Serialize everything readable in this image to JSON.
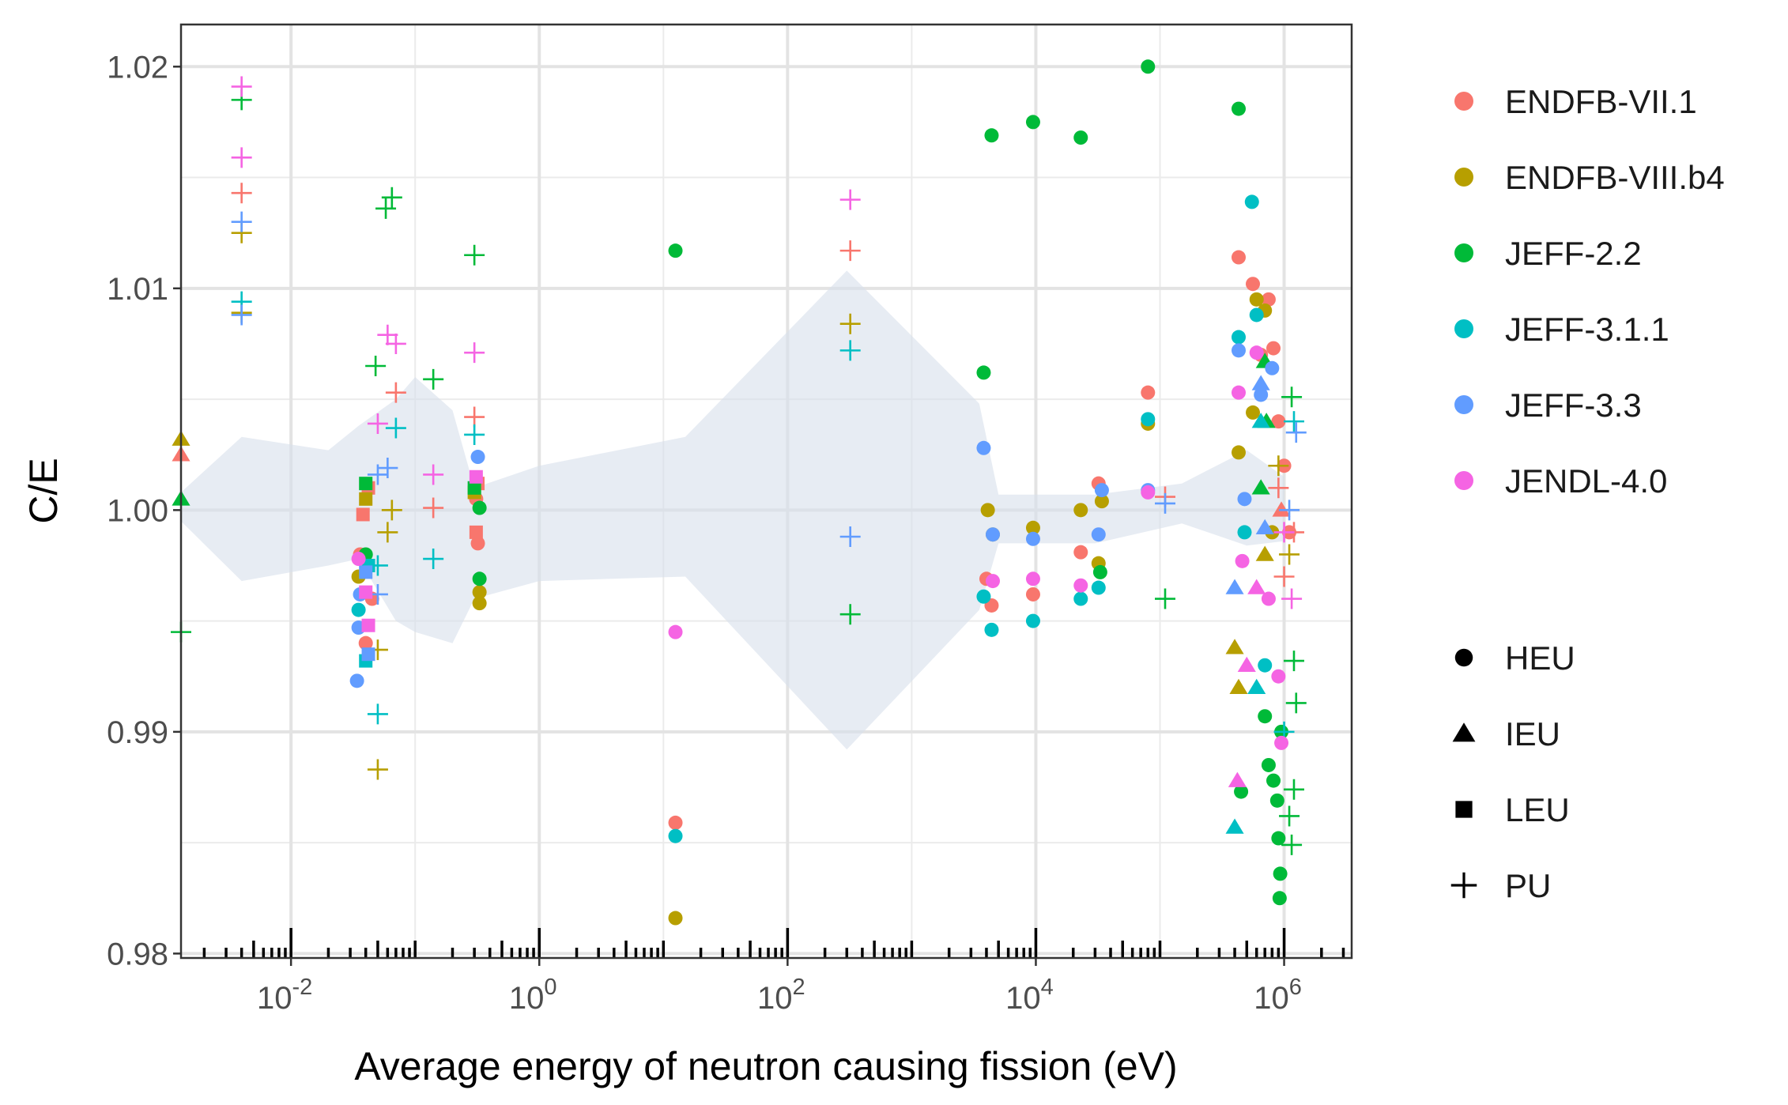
{
  "chart_data": {
    "type": "scatter",
    "xlabel": "Average energy of neutron causing fission (eV)",
    "ylabel": "C/E",
    "x_scale": "log10",
    "xlim": [
      0.0013,
      3500000
    ],
    "ylim": [
      0.9798,
      1.0219
    ],
    "x_ticks": [
      {
        "value": 0.01,
        "base": "10",
        "exp": "-2"
      },
      {
        "value": 1,
        "base": "10",
        "exp": "0"
      },
      {
        "value": 100,
        "base": "10",
        "exp": "2"
      },
      {
        "value": 10000,
        "base": "10",
        "exp": "4"
      },
      {
        "value": 1000000,
        "base": "10",
        "exp": "6"
      }
    ],
    "y_ticks": [
      {
        "value": 0.98,
        "label": "0.98"
      },
      {
        "value": 0.99,
        "label": "0.99"
      },
      {
        "value": 1.0,
        "label": "1.00"
      },
      {
        "value": 1.01,
        "label": "1.01"
      },
      {
        "value": 1.02,
        "label": "1.02"
      }
    ],
    "y_minor": [
      0.985,
      0.995,
      1.005,
      1.015
    ],
    "grid": true,
    "legend_position": "right",
    "libraries": [
      {
        "name": "ENDFB-VII.1",
        "color": "#F8766D"
      },
      {
        "name": "ENDFB-VIII.b4",
        "color": "#B79F00"
      },
      {
        "name": "JEFF-2.2",
        "color": "#00BA38"
      },
      {
        "name": "JEFF-3.1.1",
        "color": "#00BFC4"
      },
      {
        "name": "JEFF-3.3",
        "color": "#619CFF"
      },
      {
        "name": "JENDL-4.0",
        "color": "#F564E3"
      }
    ],
    "fuel_types": [
      {
        "name": "HEU",
        "shape": "circle"
      },
      {
        "name": "IEU",
        "shape": "triangle"
      },
      {
        "name": "LEU",
        "shape": "square"
      },
      {
        "name": "PU",
        "shape": "plus"
      }
    ],
    "uncertainty_band": [
      [
        0.0013,
        0.9995,
        1.0008
      ],
      [
        0.004,
        0.9968,
        1.0033
      ],
      [
        0.02,
        0.9975,
        1.0027
      ],
      [
        0.035,
        0.9978,
        1.0038
      ],
      [
        0.07,
        0.995,
        1.005
      ],
      [
        0.1,
        0.9945,
        1.006
      ],
      [
        0.2,
        0.994,
        1.0045
      ],
      [
        0.3,
        0.996,
        1.001
      ],
      [
        1,
        0.9968,
        1.002
      ],
      [
        15,
        0.997,
        1.0033
      ],
      [
        300,
        0.9892,
        1.0108
      ],
      [
        3500,
        0.9955,
        1.0048
      ],
      [
        5000,
        0.9985,
        1.0007
      ],
      [
        30000,
        0.9985,
        1.0007
      ],
      [
        150000,
        0.9994,
        1.0012
      ],
      [
        500000,
        0.9984,
        1.0027
      ],
      [
        1000000,
        0.9986,
        1.0015
      ]
    ],
    "series": [
      {
        "name": "ENDFB-VII.1",
        "fuel": "HEU",
        "points": [
          [
            12.5,
            0.9859
          ],
          [
            4000,
            0.9969
          ],
          [
            4400,
            0.9957
          ],
          [
            9500,
            0.9962
          ],
          [
            23000,
            0.9981
          ],
          [
            32000,
            1.0012
          ],
          [
            80000,
            1.0053
          ],
          [
            430000,
            1.0114
          ],
          [
            560000,
            1.0102
          ],
          [
            650000,
            1.007
          ],
          [
            750000,
            1.0095
          ],
          [
            820000,
            1.0073
          ],
          [
            900000,
            1.004
          ],
          [
            1000000,
            1.002
          ],
          [
            1100000,
            0.999
          ],
          [
            0.036,
            0.998
          ],
          [
            0.04,
            0.994
          ],
          [
            0.045,
            0.996
          ],
          [
            0.31,
            1.0005
          ],
          [
            0.32,
            0.9985
          ]
        ]
      },
      {
        "name": "ENDFB-VII.1",
        "fuel": "PU",
        "points": [
          [
            0.004,
            1.0143
          ],
          [
            0.07,
            1.0053
          ],
          [
            0.14,
            1.0001
          ],
          [
            0.3,
            1.0042
          ],
          [
            320,
            1.0117
          ],
          [
            110000,
            1.0006
          ],
          [
            900000,
            1.001
          ],
          [
            1000000,
            0.997
          ],
          [
            1200000,
            0.999
          ]
        ]
      },
      {
        "name": "ENDFB-VII.1",
        "fuel": "LEU",
        "points": [
          [
            0.038,
            0.9998
          ],
          [
            0.042,
            1.001
          ],
          [
            0.31,
            0.999
          ],
          [
            0.32,
            1.0012
          ]
        ]
      },
      {
        "name": "ENDFB-VII.1",
        "fuel": "IEU",
        "points": [
          [
            0.0013,
            1.0025
          ],
          [
            950000,
            1.0
          ]
        ]
      },
      {
        "name": "ENDFB-VIII.b4",
        "fuel": "HEU",
        "points": [
          [
            12.5,
            0.9816
          ],
          [
            4100,
            1.0
          ],
          [
            4500,
            0.9989
          ],
          [
            9500,
            0.9992
          ],
          [
            23000,
            1.0
          ],
          [
            32000,
            0.9976
          ],
          [
            34000,
            1.0004
          ],
          [
            80000,
            1.0039
          ],
          [
            430000,
            1.0026
          ],
          [
            560000,
            1.0044
          ],
          [
            600000,
            1.0095
          ],
          [
            700000,
            1.009
          ],
          [
            800000,
            0.999
          ],
          [
            0.035,
            0.997
          ],
          [
            0.33,
            0.9958
          ],
          [
            0.33,
            0.9963
          ]
        ]
      },
      {
        "name": "ENDFB-VIII.b4",
        "fuel": "PU",
        "points": [
          [
            0.004,
            1.0125
          ],
          [
            0.004,
            1.0089
          ],
          [
            0.05,
            0.9883
          ],
          [
            0.05,
            0.9937
          ],
          [
            0.06,
            0.999
          ],
          [
            0.065,
            1.0
          ],
          [
            320,
            1.0084
          ],
          [
            900000,
            1.002
          ],
          [
            1100000,
            0.998
          ]
        ]
      },
      {
        "name": "ENDFB-VIII.b4",
        "fuel": "IEU",
        "points": [
          [
            0.0013,
            1.0032
          ],
          [
            400000,
            0.9938
          ],
          [
            430000,
            0.992
          ],
          [
            700000,
            0.998
          ]
        ]
      },
      {
        "name": "ENDFB-VIII.b4",
        "fuel": "LEU",
        "points": [
          [
            0.04,
            1.0005
          ],
          [
            0.3,
            1.0008
          ]
        ]
      },
      {
        "name": "JEFF-2.2",
        "fuel": "HEU",
        "points": [
          [
            12.5,
            1.0117
          ],
          [
            3800,
            1.0062
          ],
          [
            4400,
            1.0169
          ],
          [
            9500,
            1.0175
          ],
          [
            23000,
            1.0168
          ],
          [
            33000,
            0.9972
          ],
          [
            80000,
            1.02
          ],
          [
            430000,
            1.0181
          ],
          [
            450000,
            0.9873
          ],
          [
            700000,
            0.9907
          ],
          [
            750000,
            0.9885
          ],
          [
            820000,
            0.9878
          ],
          [
            880000,
            0.9869
          ],
          [
            900000,
            0.9852
          ],
          [
            920000,
            0.9825
          ],
          [
            930000,
            0.9836
          ],
          [
            950000,
            0.99
          ],
          [
            0.33,
            0.9969
          ],
          [
            0.33,
            1.0001
          ],
          [
            0.04,
            0.998
          ]
        ]
      },
      {
        "name": "JEFF-2.2",
        "fuel": "PU",
        "points": [
          [
            0.0013,
            0.9945
          ],
          [
            0.004,
            1.0185
          ],
          [
            0.048,
            1.0065
          ],
          [
            0.058,
            1.0136
          ],
          [
            0.065,
            1.0141
          ],
          [
            0.14,
            1.0059
          ],
          [
            0.3,
            1.0115
          ],
          [
            320,
            0.9953
          ],
          [
            110000,
            0.996
          ],
          [
            1150000,
            1.0051
          ],
          [
            1200000,
            0.9932
          ],
          [
            1250000,
            0.9913
          ],
          [
            1200000,
            0.9874
          ],
          [
            1150000,
            0.9849
          ],
          [
            1100000,
            0.9862
          ]
        ]
      },
      {
        "name": "JEFF-2.2",
        "fuel": "IEU",
        "points": [
          [
            0.0013,
            1.0005
          ],
          [
            700000,
            1.0067
          ],
          [
            650000,
            1.001
          ],
          [
            720000,
            1.004
          ]
        ]
      },
      {
        "name": "JEFF-2.2",
        "fuel": "LEU",
        "points": [
          [
            0.04,
            1.0012
          ],
          [
            0.3,
            1.001
          ]
        ]
      },
      {
        "name": "JEFF-3.1.1",
        "fuel": "HEU",
        "points": [
          [
            12.5,
            0.9853
          ],
          [
            3800,
            0.9961
          ],
          [
            4400,
            0.9946
          ],
          [
            9500,
            0.995
          ],
          [
            23000,
            0.996
          ],
          [
            32000,
            0.9965
          ],
          [
            80000,
            1.0041
          ],
          [
            430000,
            1.0078
          ],
          [
            480000,
            0.999
          ],
          [
            550000,
            1.0139
          ],
          [
            600000,
            1.0088
          ],
          [
            700000,
            0.993
          ],
          [
            0.035,
            0.9955
          ]
        ]
      },
      {
        "name": "JEFF-3.1.1",
        "fuel": "PU",
        "points": [
          [
            0.004,
            1.0094
          ],
          [
            0.05,
            0.9908
          ],
          [
            0.05,
            0.9975
          ],
          [
            0.07,
            1.0037
          ],
          [
            0.14,
            0.9978
          ],
          [
            0.3,
            1.0034
          ],
          [
            320,
            1.0072
          ],
          [
            1200000,
            1.004
          ],
          [
            1000000,
            0.99
          ]
        ]
      },
      {
        "name": "JEFF-3.1.1",
        "fuel": "IEU",
        "points": [
          [
            400000,
            0.9857
          ],
          [
            600000,
            0.992
          ],
          [
            650000,
            1.004
          ]
        ]
      },
      {
        "name": "JEFF-3.1.1",
        "fuel": "LEU",
        "points": [
          [
            0.04,
            0.9932
          ],
          [
            0.042,
            0.9975
          ]
        ]
      },
      {
        "name": "JEFF-3.3",
        "fuel": "HEU",
        "points": [
          [
            3800,
            1.0028
          ],
          [
            4500,
            0.9989
          ],
          [
            9500,
            0.9987
          ],
          [
            32000,
            0.9989
          ],
          [
            34000,
            1.0009
          ],
          [
            80000,
            1.0009
          ],
          [
            430000,
            1.0072
          ],
          [
            480000,
            1.0005
          ],
          [
            650000,
            1.0052
          ],
          [
            800000,
            1.0064
          ],
          [
            0.034,
            0.9923
          ],
          [
            0.035,
            0.9947
          ],
          [
            0.036,
            0.9962
          ],
          [
            0.32,
            1.0024
          ]
        ]
      },
      {
        "name": "JEFF-3.3",
        "fuel": "PU",
        "points": [
          [
            0.004,
            1.0088
          ],
          [
            0.004,
            1.013
          ],
          [
            0.05,
            1.0016
          ],
          [
            0.05,
            0.9962
          ],
          [
            0.06,
            1.0019
          ],
          [
            320,
            0.9988
          ],
          [
            110000,
            1.0003
          ],
          [
            1100000,
            1.0
          ],
          [
            1250000,
            1.0035
          ]
        ]
      },
      {
        "name": "JEFF-3.3",
        "fuel": "IEU",
        "points": [
          [
            400000,
            0.9965
          ],
          [
            650000,
            1.0057
          ],
          [
            700000,
            0.9992
          ]
        ]
      },
      {
        "name": "JEFF-3.3",
        "fuel": "LEU",
        "points": [
          [
            0.04,
            0.9972
          ],
          [
            0.042,
            0.9935
          ]
        ]
      },
      {
        "name": "JENDL-4.0",
        "fuel": "HEU",
        "points": [
          [
            12.5,
            0.9945
          ],
          [
            4500,
            0.9968
          ],
          [
            9500,
            0.9969
          ],
          [
            23000,
            0.9966
          ],
          [
            80000,
            1.0008
          ],
          [
            430000,
            1.0053
          ],
          [
            460000,
            0.9977
          ],
          [
            600000,
            1.0071
          ],
          [
            750000,
            0.996
          ],
          [
            900000,
            0.9925
          ],
          [
            950000,
            0.9895
          ],
          [
            0.035,
            0.9978
          ]
        ]
      },
      {
        "name": "JENDL-4.0",
        "fuel": "PU",
        "points": [
          [
            0.004,
            1.0191
          ],
          [
            0.004,
            1.0159
          ],
          [
            0.05,
            1.0039
          ],
          [
            0.06,
            1.0079
          ],
          [
            0.07,
            1.0075
          ],
          [
            0.14,
            1.0016
          ],
          [
            0.3,
            1.0071
          ],
          [
            320,
            1.014
          ],
          [
            1000000,
            0.999
          ],
          [
            1150000,
            0.996
          ]
        ]
      },
      {
        "name": "JENDL-4.0",
        "fuel": "IEU",
        "points": [
          [
            420000,
            0.9878
          ],
          [
            500000,
            0.993
          ],
          [
            600000,
            0.9965
          ]
        ]
      },
      {
        "name": "JENDL-4.0",
        "fuel": "LEU",
        "points": [
          [
            0.04,
            0.9963
          ],
          [
            0.042,
            0.9948
          ],
          [
            0.31,
            1.0015
          ]
        ]
      }
    ]
  }
}
